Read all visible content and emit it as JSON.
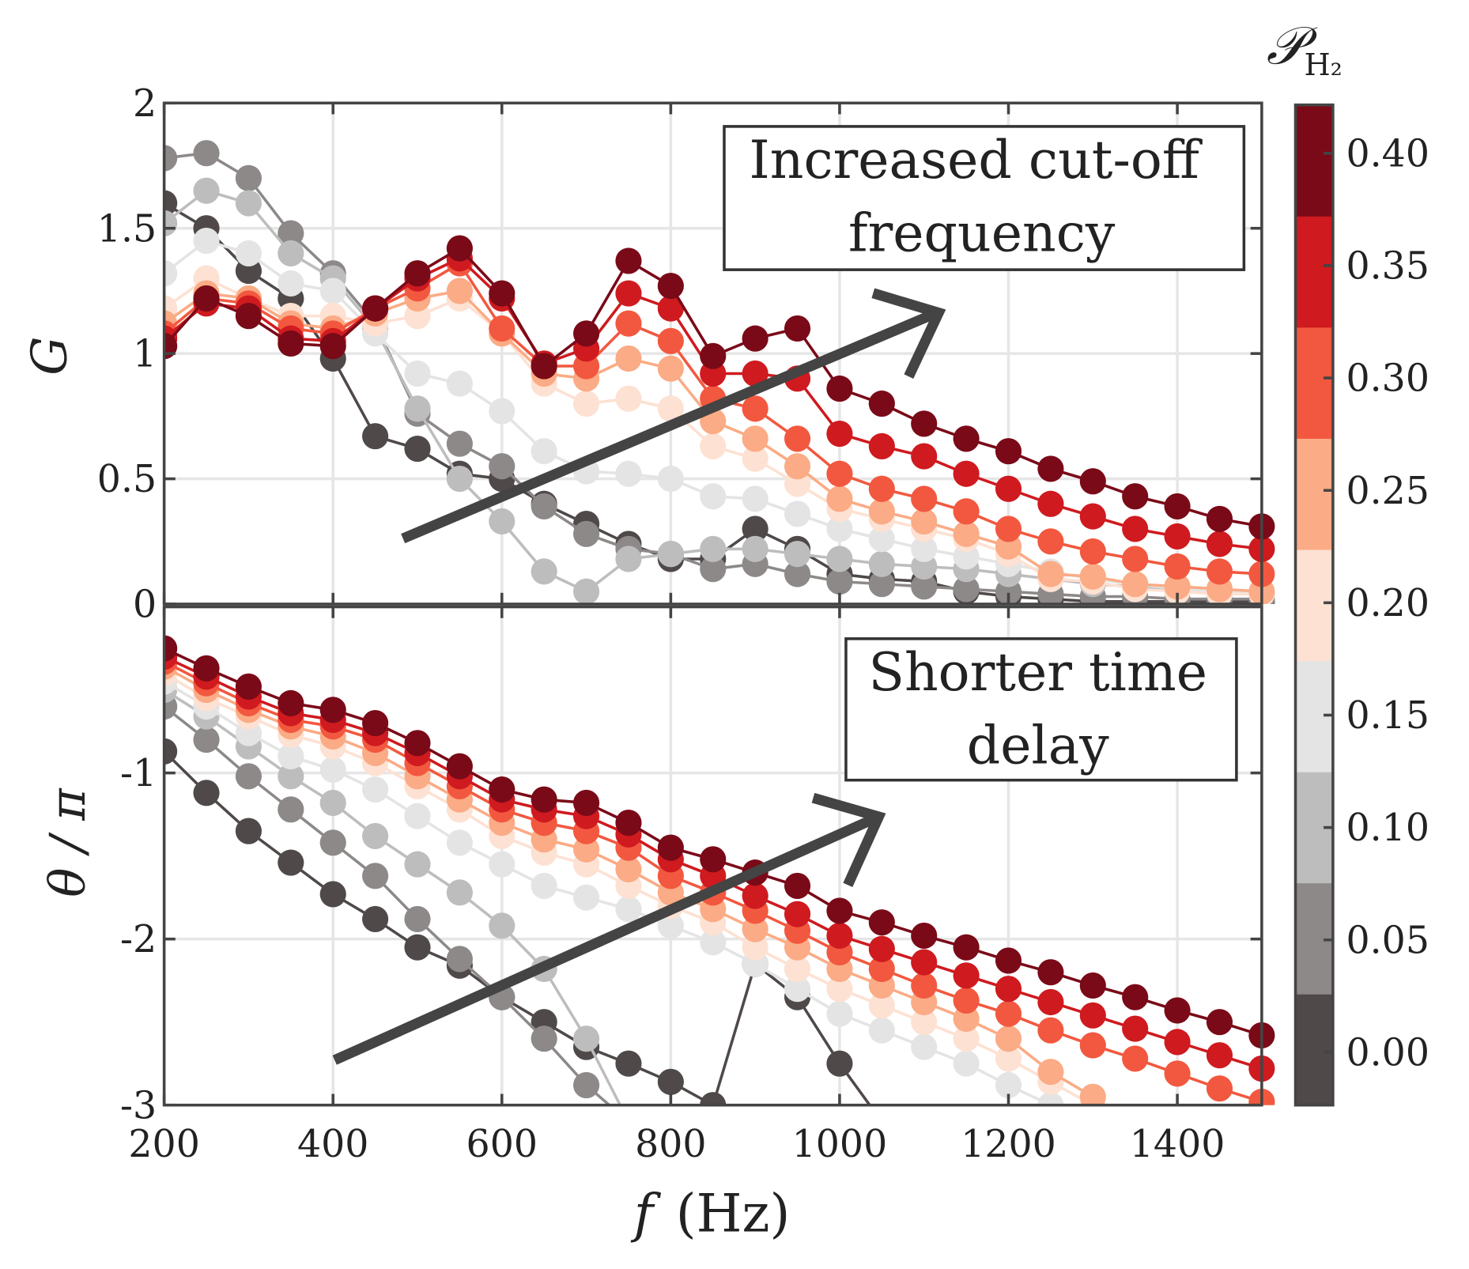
{
  "chart_data": [
    {
      "type": "line",
      "panel": "top",
      "ylabel": "G",
      "xlim": [
        200,
        1500
      ],
      "ylim": [
        0,
        2
      ],
      "yticks": [
        "0",
        "0.5",
        "1",
        "1.5",
        "2"
      ],
      "ytick_values": [
        0,
        0.5,
        1,
        1.5,
        2
      ],
      "grid": true,
      "annotation": [
        "Increased cut-off",
        "frequency"
      ],
      "x": [
        200,
        250,
        300,
        350,
        400,
        450,
        500,
        550,
        600,
        650,
        700,
        750,
        800,
        850,
        900,
        950,
        1000,
        1050,
        1100,
        1150,
        1200,
        1250,
        1300,
        1350,
        1400,
        1450,
        1500
      ],
      "series": [
        {
          "name": "0.00",
          "values": [
            1.6,
            1.5,
            1.33,
            1.22,
            0.98,
            0.67,
            0.62,
            0.52,
            0.5,
            0.4,
            0.32,
            0.24,
            0.18,
            0.18,
            0.3,
            0.22,
            0.12,
            0.1,
            0.09,
            0.05,
            0.03,
            0.02,
            0.01,
            0.01,
            0.01,
            0.01,
            0.01
          ]
        },
        {
          "name": "0.05",
          "values": [
            1.78,
            1.8,
            1.7,
            1.48,
            1.32,
            1.12,
            0.76,
            0.64,
            0.55,
            0.39,
            0.28,
            0.22,
            0.2,
            0.14,
            0.16,
            0.12,
            0.09,
            0.08,
            0.07,
            0.06,
            0.05,
            0.04,
            0.03,
            0.03,
            0.02,
            0.02,
            0.02
          ]
        },
        {
          "name": "0.10",
          "values": [
            1.52,
            1.65,
            1.6,
            1.4,
            1.3,
            1.1,
            0.78,
            0.5,
            0.33,
            0.13,
            0.05,
            0.18,
            0.2,
            0.22,
            0.22,
            0.2,
            0.18,
            0.16,
            0.15,
            0.14,
            0.12,
            0.1,
            0.08,
            0.07,
            0.06,
            0.05,
            0.04
          ]
        },
        {
          "name": "0.15",
          "values": [
            1.32,
            1.45,
            1.4,
            1.28,
            1.25,
            1.08,
            0.92,
            0.88,
            0.77,
            0.61,
            0.53,
            0.52,
            0.5,
            0.43,
            0.42,
            0.36,
            0.3,
            0.26,
            0.22,
            0.19,
            0.16,
            0.13,
            0.1,
            0.08,
            0.06,
            0.05,
            0.04
          ]
        },
        {
          "name": "0.20",
          "values": [
            1.18,
            1.3,
            1.22,
            1.15,
            1.15,
            1.12,
            1.15,
            1.22,
            1.08,
            0.88,
            0.8,
            0.82,
            0.78,
            0.63,
            0.58,
            0.48,
            0.38,
            0.34,
            0.3,
            0.26,
            0.2,
            0.1,
            0.09,
            0.06,
            0.05,
            0.04,
            0.04
          ]
        },
        {
          "name": "0.25",
          "values": [
            1.12,
            1.24,
            1.22,
            1.12,
            1.1,
            1.16,
            1.22,
            1.25,
            1.08,
            0.92,
            0.9,
            0.98,
            0.94,
            0.73,
            0.66,
            0.55,
            0.42,
            0.37,
            0.33,
            0.28,
            0.23,
            0.12,
            0.11,
            0.08,
            0.07,
            0.06,
            0.05
          ]
        },
        {
          "name": "0.30",
          "values": [
            1.08,
            1.22,
            1.2,
            1.1,
            1.08,
            1.18,
            1.26,
            1.36,
            1.1,
            0.95,
            0.95,
            1.12,
            1.05,
            0.82,
            0.78,
            0.66,
            0.52,
            0.46,
            0.42,
            0.37,
            0.3,
            0.25,
            0.21,
            0.18,
            0.15,
            0.13,
            0.12
          ]
        },
        {
          "name": "0.35",
          "values": [
            1.06,
            1.2,
            1.18,
            1.06,
            1.05,
            1.18,
            1.3,
            1.38,
            1.22,
            0.96,
            1.02,
            1.24,
            1.18,
            0.92,
            0.92,
            0.9,
            0.68,
            0.63,
            0.59,
            0.52,
            0.46,
            0.4,
            0.35,
            0.3,
            0.27,
            0.24,
            0.22
          ]
        },
        {
          "name": "0.40",
          "values": [
            1.03,
            1.22,
            1.15,
            1.04,
            1.03,
            1.18,
            1.32,
            1.42,
            1.24,
            0.95,
            1.08,
            1.37,
            1.27,
            0.99,
            1.06,
            1.1,
            0.86,
            0.8,
            0.72,
            0.66,
            0.61,
            0.54,
            0.49,
            0.43,
            0.39,
            0.34,
            0.31
          ]
        }
      ]
    },
    {
      "type": "line",
      "panel": "bottom",
      "xlabel": "f (Hz)",
      "ylabel": "θ / π",
      "xlim": [
        200,
        1500
      ],
      "ylim": [
        -3,
        0
      ],
      "xticks": [
        "200",
        "400",
        "600",
        "800",
        "1000",
        "1200",
        "1400"
      ],
      "xtick_values": [
        200,
        400,
        600,
        800,
        1000,
        1200,
        1400
      ],
      "yticks": [
        "-3",
        "-2",
        "-1"
      ],
      "ytick_values": [
        -3,
        -2,
        -1
      ],
      "grid": true,
      "annotation": [
        "Shorter time",
        "delay"
      ],
      "x": [
        200,
        250,
        300,
        350,
        400,
        450,
        500,
        550,
        600,
        650,
        700,
        750,
        800,
        850,
        900,
        950,
        1000,
        1050,
        1100,
        1150,
        1200,
        1250,
        1300,
        1350,
        1400,
        1450,
        1500
      ],
      "series": [
        {
          "name": "0.00",
          "values": [
            -0.87,
            -1.12,
            -1.35,
            -1.54,
            -1.73,
            -1.88,
            -2.05,
            -2.16,
            -2.35,
            -2.5,
            -2.65,
            -2.75,
            -2.86,
            -3.0,
            -2.15,
            -2.35,
            -2.75,
            -3.1,
            null,
            null,
            null,
            null,
            null,
            null,
            null,
            null,
            null
          ]
        },
        {
          "name": "0.05",
          "values": [
            -0.6,
            -0.8,
            -1.02,
            -1.22,
            -1.42,
            -1.62,
            -1.88,
            -2.12,
            -2.35,
            -2.6,
            -2.88,
            -3.1,
            null,
            null,
            null,
            null,
            null,
            null,
            null,
            null,
            null,
            null,
            null,
            null,
            null,
            null,
            null
          ]
        },
        {
          "name": "0.10",
          "values": [
            -0.5,
            -0.66,
            -0.84,
            -1.02,
            -1.18,
            -1.38,
            -1.55,
            -1.72,
            -1.92,
            -2.18,
            -2.6,
            -3.1,
            null,
            null,
            null,
            null,
            null,
            null,
            null,
            null,
            null,
            null,
            null,
            null,
            null,
            null,
            null
          ]
        },
        {
          "name": "0.15",
          "values": [
            -0.45,
            -0.6,
            -0.76,
            -0.9,
            -0.98,
            -1.1,
            -1.26,
            -1.42,
            -1.55,
            -1.68,
            -1.75,
            -1.82,
            -1.92,
            -2.02,
            -2.15,
            -2.3,
            -2.45,
            -2.55,
            -2.65,
            -2.75,
            -2.88,
            -3.0,
            null,
            null,
            null,
            null,
            null
          ]
        },
        {
          "name": "0.20",
          "values": [
            -0.4,
            -0.55,
            -0.66,
            -0.77,
            -0.84,
            -0.94,
            -1.08,
            -1.22,
            -1.38,
            -1.48,
            -1.55,
            -1.68,
            -1.8,
            -1.9,
            -2.05,
            -2.18,
            -2.3,
            -2.4,
            -2.5,
            -2.6,
            -2.72,
            -2.86,
            -3.0,
            null,
            null,
            null,
            null
          ]
        },
        {
          "name": "0.25",
          "values": [
            -0.36,
            -0.5,
            -0.62,
            -0.72,
            -0.78,
            -0.88,
            -1.02,
            -1.16,
            -1.3,
            -1.4,
            -1.46,
            -1.58,
            -1.72,
            -1.82,
            -1.94,
            -2.05,
            -2.18,
            -2.28,
            -2.38,
            -2.48,
            -2.6,
            -2.8,
            -2.95,
            null,
            null,
            null,
            null
          ]
        },
        {
          "name": "0.30",
          "values": [
            -0.33,
            -0.46,
            -0.58,
            -0.68,
            -0.72,
            -0.8,
            -0.94,
            -1.08,
            -1.22,
            -1.3,
            -1.35,
            -1.45,
            -1.62,
            -1.72,
            -1.83,
            -1.95,
            -2.08,
            -2.18,
            -2.28,
            -2.37,
            -2.45,
            -2.55,
            -2.64,
            -2.72,
            -2.81,
            -2.9,
            -2.98
          ]
        },
        {
          "name": "0.35",
          "values": [
            -0.3,
            -0.42,
            -0.54,
            -0.64,
            -0.68,
            -0.76,
            -0.88,
            -1.02,
            -1.16,
            -1.22,
            -1.26,
            -1.37,
            -1.52,
            -1.62,
            -1.74,
            -1.85,
            -1.98,
            -2.06,
            -2.14,
            -2.22,
            -2.3,
            -2.38,
            -2.46,
            -2.54,
            -2.62,
            -2.7,
            -2.78
          ]
        },
        {
          "name": "0.40",
          "values": [
            -0.25,
            -0.37,
            -0.48,
            -0.58,
            -0.62,
            -0.7,
            -0.82,
            -0.96,
            -1.1,
            -1.16,
            -1.18,
            -1.3,
            -1.45,
            -1.52,
            -1.6,
            -1.68,
            -1.83,
            -1.9,
            -1.98,
            -2.05,
            -2.13,
            -2.2,
            -2.28,
            -2.35,
            -2.43,
            -2.5,
            -2.58
          ]
        }
      ]
    }
  ],
  "colorbar": {
    "title": "𝒫",
    "title_sub": "H₂",
    "ticks": [
      "0.00",
      "0.05",
      "0.10",
      "0.15",
      "0.20",
      "0.25",
      "0.30",
      "0.35",
      "0.40"
    ],
    "values": [
      0,
      0.05,
      0.1,
      0.15,
      0.2,
      0.25,
      0.3,
      0.35,
      0.4
    ],
    "colors": [
      "#4f4949",
      "#8d8989",
      "#bebdbd",
      "#e4e4e4",
      "#fde1d2",
      "#fbab85",
      "#f2583f",
      "#cf1a1f",
      "#7a0a18"
    ]
  },
  "xlabel_italic": "f",
  "xlabel_unit": "(Hz)",
  "ylabel_top": "G",
  "ylabel_bottom": "θ / π"
}
